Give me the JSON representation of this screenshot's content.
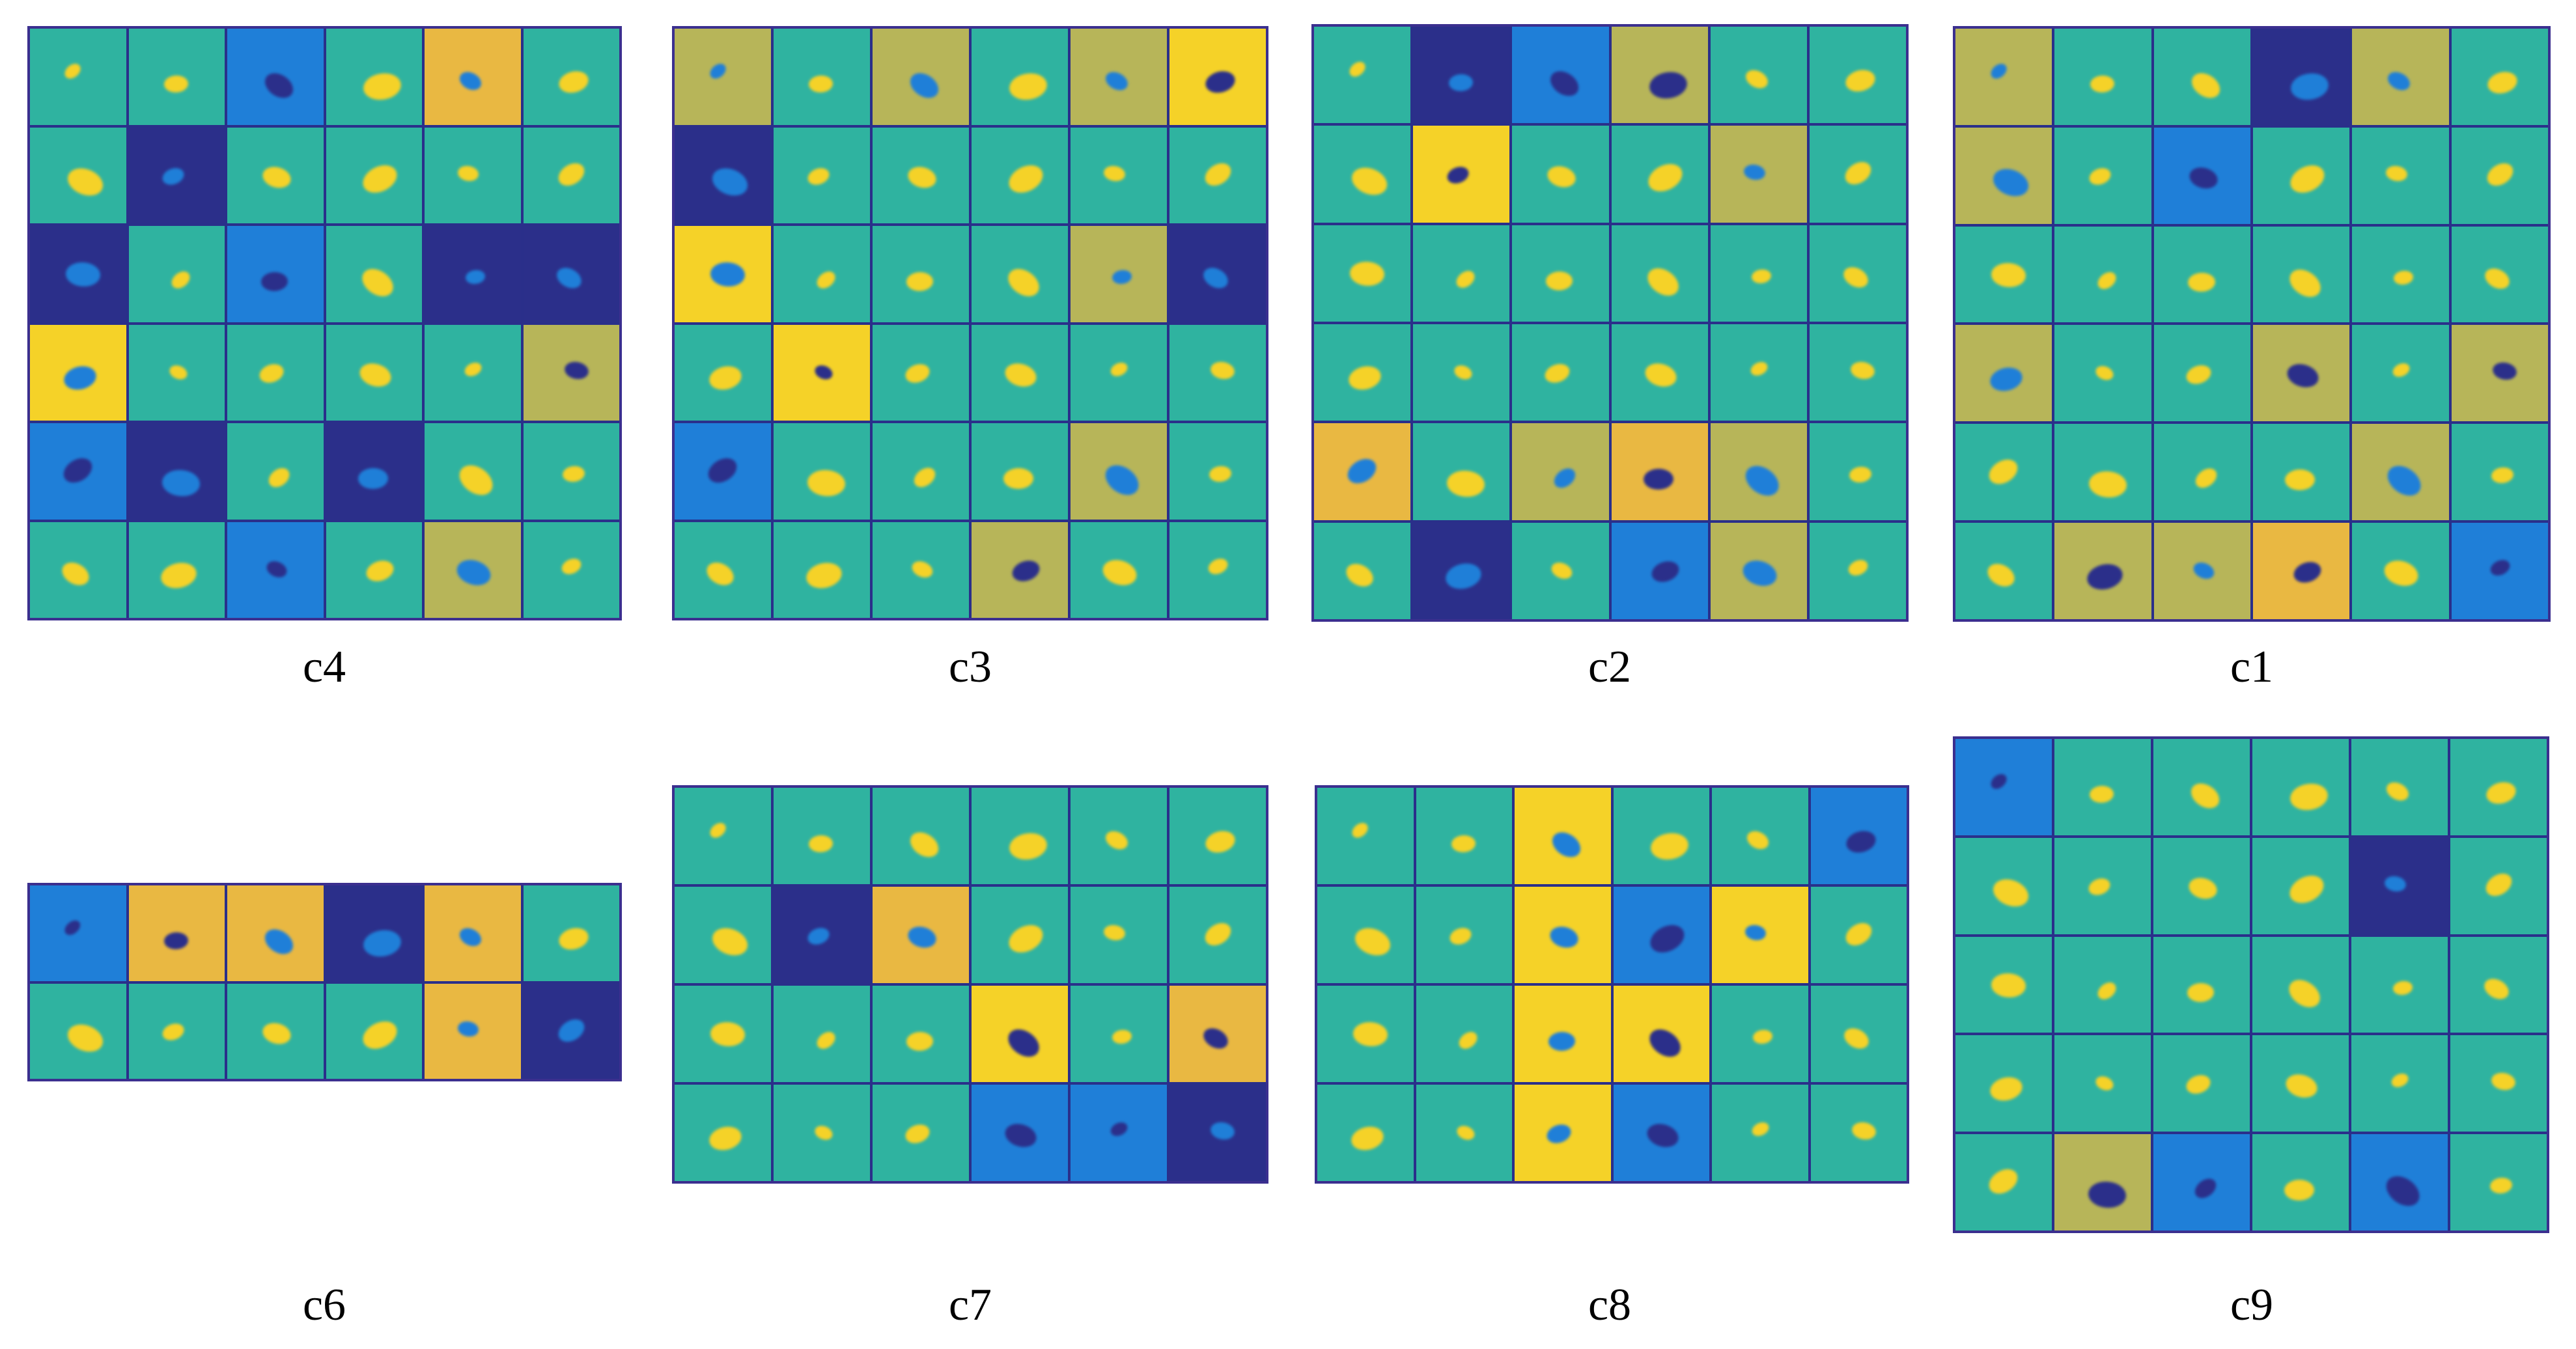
{
  "colors": {
    "teal": "#2fb3a0",
    "navy": "#2b2f8a",
    "blue": "#1f7fd8",
    "yellow": "#f5d228",
    "orange": "#e9b842",
    "olive": "#b7b559",
    "frame": "#3b2f8f"
  },
  "captions": {
    "c4": "c4",
    "c3": "c3",
    "c2": "c2",
    "c1": "c1",
    "c6": "c6",
    "c7": "c7",
    "c8": "c8",
    "c9": "c9"
  },
  "panels": [
    {
      "id": "c4",
      "cols": 6,
      "rows": 6,
      "bgs": [
        "teal",
        "teal",
        "blue",
        "teal",
        "orange",
        "teal",
        "teal",
        "navy",
        "teal",
        "teal",
        "teal",
        "teal",
        "navy",
        "teal",
        "blue",
        "teal",
        "navy",
        "navy",
        "yellow",
        "teal",
        "teal",
        "teal",
        "teal",
        "olive",
        "blue",
        "navy",
        "teal",
        "navy",
        "teal",
        "teal",
        "teal",
        "teal",
        "blue",
        "teal",
        "olive",
        "teal"
      ]
    },
    {
      "id": "c3",
      "cols": 6,
      "rows": 6,
      "bgs": [
        "olive",
        "teal",
        "olive",
        "teal",
        "olive",
        "yellow",
        "navy",
        "teal",
        "teal",
        "teal",
        "teal",
        "teal",
        "yellow",
        "teal",
        "teal",
        "teal",
        "olive",
        "navy",
        "teal",
        "yellow",
        "teal",
        "teal",
        "teal",
        "teal",
        "blue",
        "teal",
        "teal",
        "teal",
        "olive",
        "teal",
        "teal",
        "teal",
        "teal",
        "olive",
        "teal",
        "teal"
      ]
    },
    {
      "id": "c2",
      "cols": 6,
      "rows": 6,
      "bgs": [
        "teal",
        "navy",
        "blue",
        "olive",
        "teal",
        "teal",
        "teal",
        "yellow",
        "teal",
        "teal",
        "olive",
        "teal",
        "teal",
        "teal",
        "teal",
        "teal",
        "teal",
        "teal",
        "teal",
        "teal",
        "teal",
        "teal",
        "teal",
        "teal",
        "orange",
        "teal",
        "olive",
        "orange",
        "olive",
        "teal",
        "teal",
        "navy",
        "teal",
        "blue",
        "olive",
        "teal"
      ]
    },
    {
      "id": "c1",
      "cols": 6,
      "rows": 6,
      "bgs": [
        "olive",
        "teal",
        "teal",
        "navy",
        "olive",
        "teal",
        "olive",
        "teal",
        "blue",
        "teal",
        "teal",
        "teal",
        "teal",
        "teal",
        "teal",
        "teal",
        "teal",
        "teal",
        "olive",
        "teal",
        "teal",
        "olive",
        "teal",
        "olive",
        "teal",
        "teal",
        "teal",
        "teal",
        "olive",
        "teal",
        "teal",
        "olive",
        "olive",
        "orange",
        "teal",
        "blue"
      ]
    },
    {
      "id": "c6",
      "cols": 6,
      "rows": 2,
      "bgs": [
        "blue",
        "orange",
        "orange",
        "navy",
        "orange",
        "teal",
        "teal",
        "teal",
        "teal",
        "teal",
        "orange",
        "navy"
      ]
    },
    {
      "id": "c7",
      "cols": 6,
      "rows": 4,
      "bgs": [
        "teal",
        "teal",
        "teal",
        "teal",
        "teal",
        "teal",
        "teal",
        "navy",
        "orange",
        "teal",
        "teal",
        "teal",
        "teal",
        "teal",
        "teal",
        "yellow",
        "teal",
        "orange",
        "teal",
        "teal",
        "teal",
        "blue",
        "blue",
        "navy"
      ]
    },
    {
      "id": "c8",
      "cols": 6,
      "rows": 4,
      "bgs": [
        "teal",
        "teal",
        "yellow",
        "teal",
        "teal",
        "blue",
        "teal",
        "teal",
        "yellow",
        "blue",
        "yellow",
        "teal",
        "teal",
        "teal",
        "yellow",
        "yellow",
        "teal",
        "teal",
        "teal",
        "teal",
        "yellow",
        "blue",
        "teal",
        "teal"
      ]
    },
    {
      "id": "c9",
      "cols": 6,
      "rows": 5,
      "bgs": [
        "blue",
        "teal",
        "teal",
        "teal",
        "teal",
        "teal",
        "teal",
        "teal",
        "teal",
        "teal",
        "navy",
        "teal",
        "teal",
        "teal",
        "teal",
        "teal",
        "teal",
        "teal",
        "teal",
        "teal",
        "teal",
        "teal",
        "teal",
        "teal",
        "teal",
        "olive",
        "blue",
        "teal",
        "blue",
        "teal"
      ]
    }
  ]
}
